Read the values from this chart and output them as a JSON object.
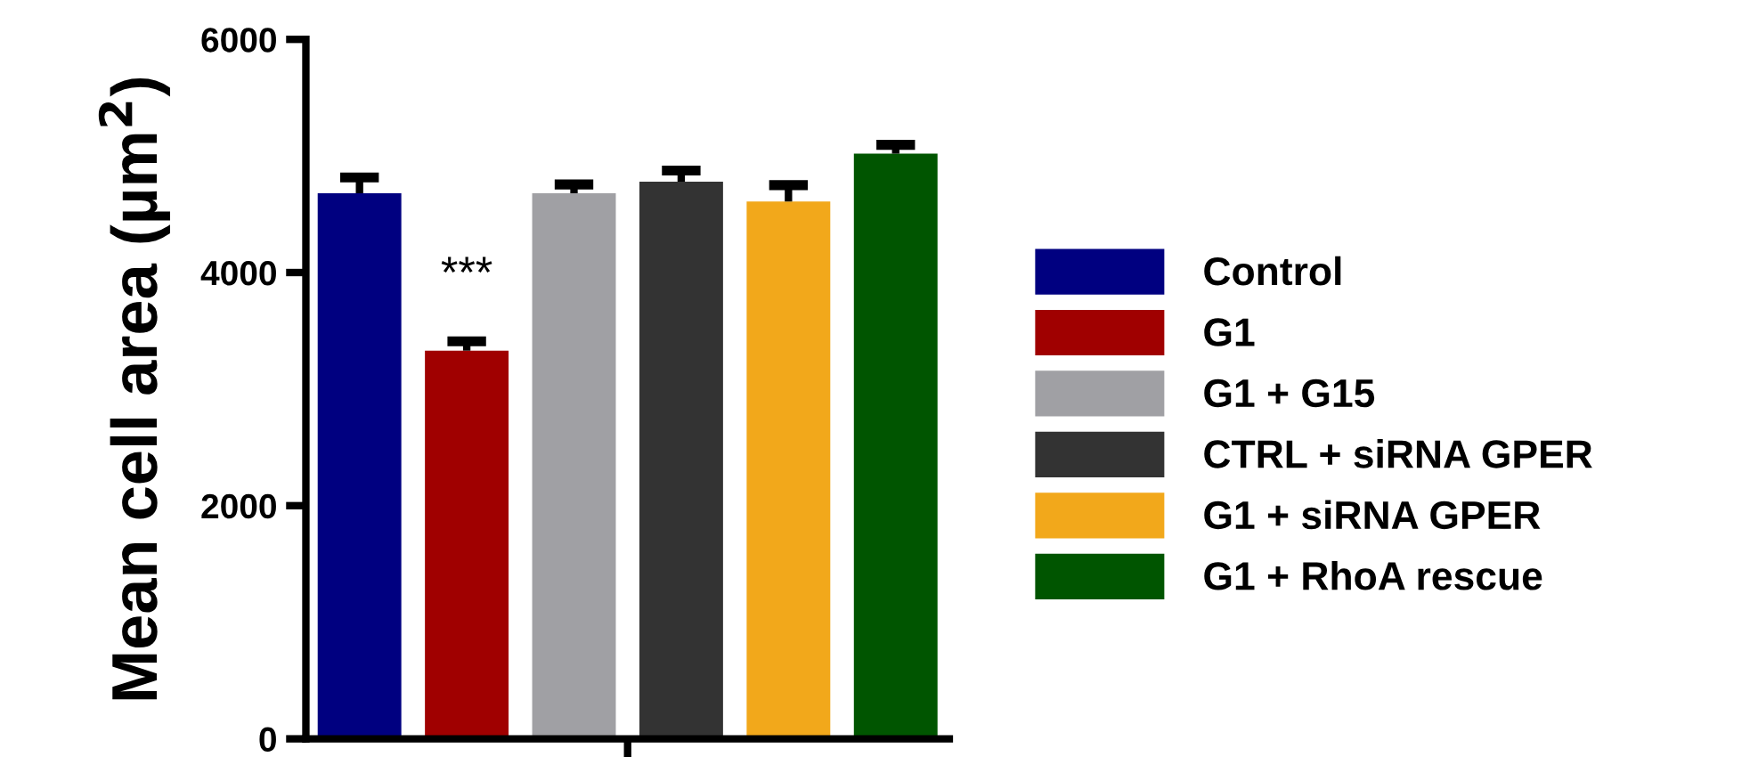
{
  "chart_data": {
    "type": "bar",
    "ylabel": "Mean cell area (µm$^{2}$)",
    "categories": [
      null
    ],
    "series": [
      {
        "name": "Control",
        "color": "#000080",
        "values": [
          4680
        ],
        "errors": [
          [
            4680,
            4815
          ]
        ]
      },
      {
        "name": "G1",
        "color": "#a00000",
        "values": [
          3330
        ],
        "errors": [
          [
            3330,
            3410
          ]
        ]
      },
      {
        "name": "G1 + G15",
        "color": "#a0a0a4",
        "values": [
          4680
        ],
        "errors": [
          [
            4680,
            4755
          ]
        ]
      },
      {
        "name": "CTRL + siRNA GPER",
        "color": "#333333",
        "values": [
          4780
        ],
        "errors": [
          [
            4780,
            4875
          ]
        ]
      },
      {
        "name": "G1 + siRNA GPER",
        "color": "#f2a81b",
        "values": [
          4610
        ],
        "errors": [
          [
            4610,
            4750
          ]
        ]
      },
      {
        "name": "G1 + RhoA rescue",
        "color": "#005500",
        "values": [
          5020
        ],
        "errors": [
          [
            5020,
            5095
          ]
        ]
      }
    ],
    "annotations": [
      "***"
    ],
    "ylim": [
      0,
      6000
    ],
    "yticks": [
      0,
      2000,
      4000,
      6000
    ],
    "grid": false,
    "legend": "right"
  }
}
